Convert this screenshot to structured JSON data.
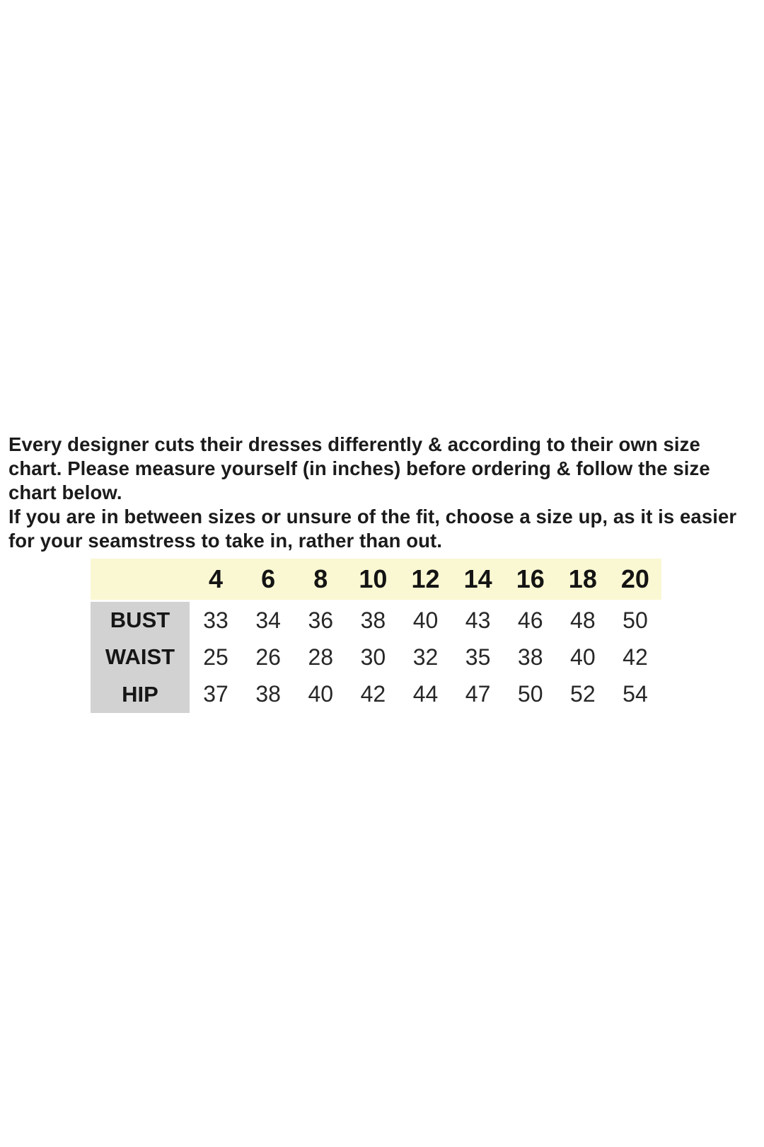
{
  "page": {
    "background": "#ffffff"
  },
  "intro": {
    "lines": [
      "Every designer cuts their dresses differently & according to their own size",
      "chart. Please measure yourself (in inches) before ordering & follow the size",
      "chart below.",
      "If you are in between sizes or unsure of the fit, choose a size up, as it is easier",
      "for your seamstress to take in, rather than out."
    ]
  },
  "size_chart": {
    "unit": "inches",
    "sizes": [
      "4",
      "6",
      "8",
      "10",
      "12",
      "14",
      "16",
      "18",
      "20"
    ],
    "rows": [
      {
        "label": "BUST",
        "values": [
          "33",
          "34",
          "36",
          "38",
          "40",
          "43",
          "46",
          "48",
          "50"
        ]
      },
      {
        "label": "WAIST",
        "values": [
          "25",
          "26",
          "28",
          "30",
          "32",
          "35",
          "38",
          "40",
          "42"
        ]
      },
      {
        "label": "HIP",
        "values": [
          "37",
          "38",
          "40",
          "42",
          "44",
          "47",
          "50",
          "52",
          "54"
        ]
      }
    ],
    "colors": {
      "header_bg": "#faf8d2",
      "label_bg": "#d2d2d2",
      "text": "#1b1b1b"
    }
  }
}
